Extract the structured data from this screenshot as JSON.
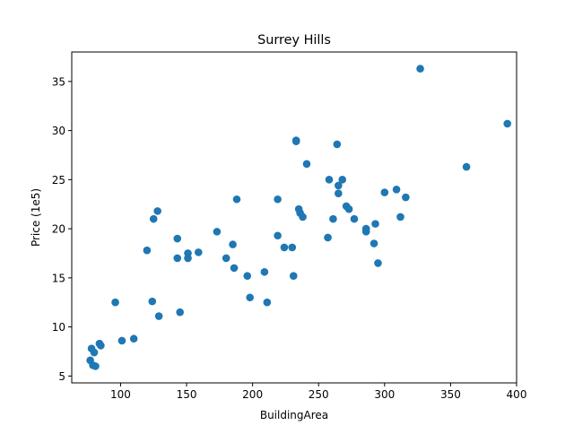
{
  "chart_data": {
    "type": "scatter",
    "title": "Surrey Hills",
    "xlabel": "BuildingArea",
    "ylabel": "Price (1e5)",
    "xlim": [
      63,
      400
    ],
    "ylim": [
      4.3,
      38.0
    ],
    "xticks": [
      100,
      150,
      200,
      250,
      300,
      350,
      400
    ],
    "yticks": [
      5,
      10,
      15,
      20,
      25,
      30,
      35
    ],
    "grid": false,
    "marker_color": "#1f77b4",
    "x": [
      327,
      393,
      233,
      233,
      264,
      241,
      362,
      258,
      268,
      265,
      265,
      300,
      309,
      316,
      271,
      273,
      235,
      236,
      238,
      261,
      277,
      286,
      286,
      293,
      257,
      292,
      312,
      295,
      128,
      125,
      188,
      219,
      173,
      120,
      143,
      143,
      151,
      151,
      159,
      185,
      180,
      186,
      196,
      209,
      219,
      224,
      230,
      231,
      198,
      211,
      96,
      124,
      145,
      129,
      101,
      110,
      84,
      85,
      78,
      80,
      77,
      79,
      81
    ],
    "y": [
      36.3,
      30.7,
      29.0,
      28.9,
      28.6,
      26.6,
      26.3,
      25.0,
      25.0,
      24.4,
      23.6,
      23.7,
      24.0,
      23.2,
      22.3,
      22.0,
      22.0,
      21.6,
      21.2,
      21.0,
      21.0,
      20.0,
      19.7,
      20.5,
      19.1,
      18.5,
      21.2,
      16.5,
      21.8,
      21.0,
      23.0,
      23.0,
      19.7,
      17.8,
      19.0,
      17.0,
      17.0,
      17.5,
      17.6,
      18.4,
      17.0,
      16.0,
      15.2,
      15.6,
      19.3,
      18.1,
      18.1,
      15.2,
      13.0,
      12.5,
      12.5,
      12.6,
      11.5,
      11.1,
      8.6,
      8.8,
      8.3,
      8.1,
      7.8,
      7.4,
      6.6,
      6.1,
      6.0
    ]
  }
}
